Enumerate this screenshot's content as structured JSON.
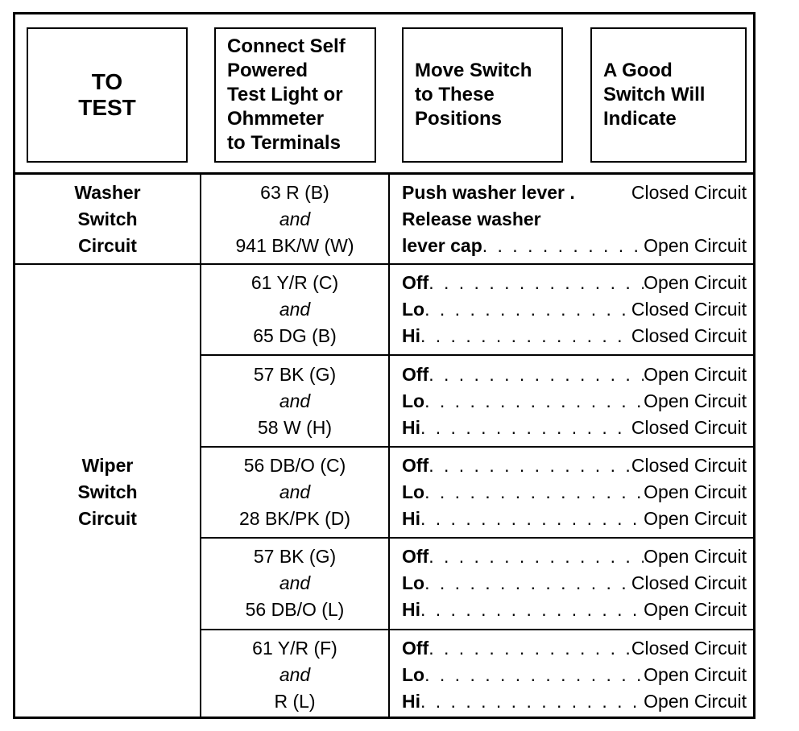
{
  "header": {
    "to_test": [
      "TO",
      "TEST"
    ],
    "connect": [
      "Connect Self",
      "Powered",
      "Test Light or",
      "Ohmmeter",
      "to Terminals"
    ],
    "move": [
      "Move Switch",
      "to These",
      "Positions"
    ],
    "indicate": [
      "A Good",
      "Switch Will",
      "Indicate"
    ]
  },
  "washer": {
    "circuit": [
      "Washer",
      "Switch",
      "Circuit"
    ],
    "terminals": [
      "63 R (B)",
      "and",
      "941 BK/W (W)"
    ],
    "positions": [
      {
        "pos": "Push washer lever",
        "result": "Closed Circuit",
        "dots": false
      },
      {
        "pos": "Release washer",
        "result": "",
        "dots": false
      },
      {
        "pos": "lever cap",
        "result": "Open Circuit",
        "dots": true
      }
    ]
  },
  "wiper": {
    "circuit": [
      "Wiper",
      "Switch",
      "Circuit"
    ],
    "rows": [
      {
        "terminals": [
          "61 Y/R (C)",
          "and",
          "65 DG (B)"
        ],
        "positions": [
          {
            "pos": "Off",
            "result": "Open Circuit"
          },
          {
            "pos": "Lo",
            "result": "Closed Circuit"
          },
          {
            "pos": "Hi",
            "result": "Closed Circuit"
          }
        ]
      },
      {
        "terminals": [
          "57 BK (G)",
          "and",
          "58 W (H)"
        ],
        "positions": [
          {
            "pos": "Off",
            "result": "Open Circuit"
          },
          {
            "pos": "Lo",
            "result": "Open Circuit"
          },
          {
            "pos": "Hi",
            "result": "Closed Circuit"
          }
        ]
      },
      {
        "terminals": [
          "56 DB/O (C)",
          "and",
          "28 BK/PK (D)"
        ],
        "positions": [
          {
            "pos": "Off",
            "result": "Closed Circuit"
          },
          {
            "pos": "Lo",
            "result": "Open Circuit"
          },
          {
            "pos": "Hi",
            "result": "Open Circuit"
          }
        ]
      },
      {
        "terminals": [
          "57 BK (G)",
          "and",
          "56 DB/O (L)"
        ],
        "positions": [
          {
            "pos": "Off",
            "result": "Open Circuit"
          },
          {
            "pos": "Lo",
            "result": "Closed Circuit"
          },
          {
            "pos": "Hi",
            "result": "Open Circuit"
          }
        ]
      },
      {
        "terminals": [
          "61 Y/R (F)",
          "and",
          "R (L)"
        ],
        "positions": [
          {
            "pos": "Off",
            "result": "Closed Circuit"
          },
          {
            "pos": "Lo",
            "result": "Open Circuit"
          },
          {
            "pos": "Hi",
            "result": "Open Circuit"
          }
        ]
      }
    ]
  }
}
